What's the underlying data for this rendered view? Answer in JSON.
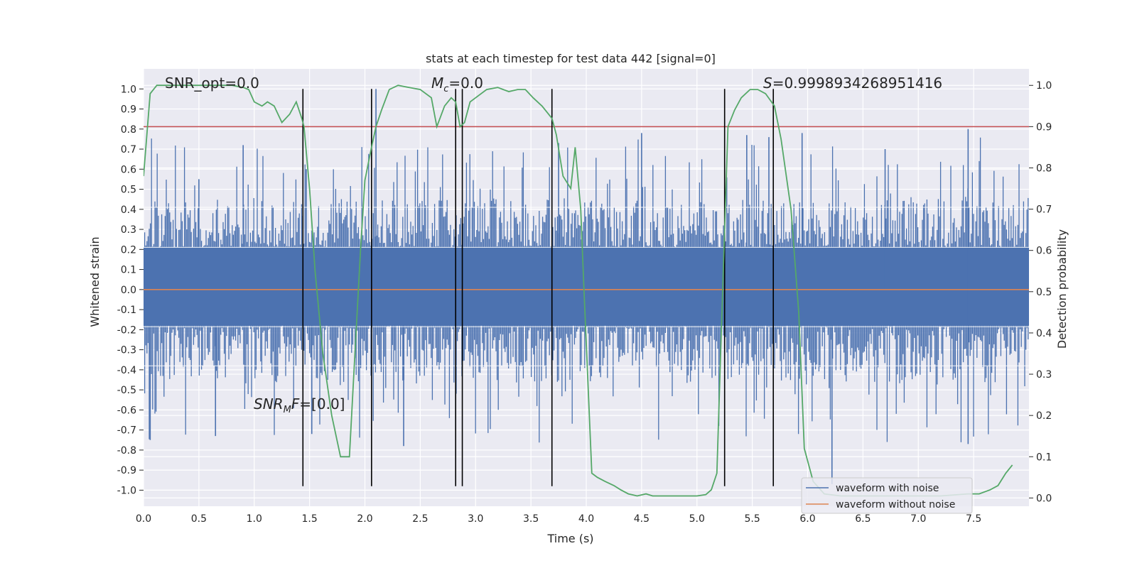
{
  "chart_data": {
    "type": "line",
    "title": "stats at each timestep for test data 442 [signal=0]",
    "xlabel": "Time (s)",
    "ylabel": "Whitened strain",
    "y2label": "Detection probability",
    "xlim": [
      0.0,
      8.0
    ],
    "ylim": [
      -1.08,
      1.1
    ],
    "y2lim": [
      -0.02,
      1.04
    ],
    "x_ticks": [
      0.0,
      0.5,
      1.0,
      1.5,
      2.0,
      2.5,
      3.0,
      3.5,
      4.0,
      4.5,
      5.0,
      5.5,
      6.0,
      6.5,
      7.0,
      7.5
    ],
    "x_tick_labels": [
      "0.0",
      "0.5",
      "1.0",
      "1.5",
      "2.0",
      "2.5",
      "3.0",
      "3.5",
      "4.0",
      "4.5",
      "5.0",
      "5.5",
      "6.0",
      "6.5",
      "7.0",
      "7.5"
    ],
    "y_ticks": [
      1.0,
      0.9,
      0.8,
      0.7,
      0.6,
      0.5,
      0.4,
      0.3,
      0.2,
      0.1,
      0.0,
      -0.1,
      -0.2,
      -0.3,
      -0.4,
      -0.5,
      -0.6,
      -0.7,
      -0.8,
      -0.9,
      -1.0
    ],
    "y_tick_labels": [
      "1.0",
      "0.9",
      "0.8",
      "0.7",
      "0.6",
      "0.5",
      "0.4",
      "0.3",
      "0.2",
      "0.1",
      "0.0",
      "-0.1",
      "-0.2",
      "-0.3",
      "-0.4",
      "-0.5",
      "-0.6",
      "-0.7",
      "-0.8",
      "-0.9",
      "-1.0"
    ],
    "y2_ticks": [
      1.0,
      0.9,
      0.8,
      0.7,
      0.6,
      0.5,
      0.4,
      0.3,
      0.2,
      0.1,
      0.0
    ],
    "y2_tick_labels": [
      "1.0",
      "0.9",
      "0.8",
      "0.7",
      "0.6",
      "0.5",
      "0.4",
      "0.3",
      "0.2",
      "0.1",
      "0.0"
    ],
    "grid": true,
    "legend": {
      "placement": "lower-right",
      "entries": [
        {
          "label": "waveform with noise",
          "color": "#4c72b0"
        },
        {
          "label": "waveform without noise",
          "color": "#dd8452"
        }
      ]
    },
    "annotations": {
      "snr_opt": "SNR_opt=0.0",
      "mc": "=0.0",
      "mc_symbol": "M",
      "mc_sub": "c",
      "s_value": "=0.9998934268951416",
      "s_symbol": "S",
      "snr_mf": "=[0.0]",
      "snr_mf_symbol": "SNR",
      "snr_mf_sub": "M",
      "snr_mf_tail": "F"
    },
    "series": [
      {
        "name": "waveform with noise",
        "color": "#4c72b0",
        "kind": "noise",
        "band_upper": 0.21,
        "band_lower": -0.18,
        "dense_upper": 0.4,
        "dense_lower": -0.42,
        "spikes": [
          {
            "x": 0.06,
            "y": -0.75
          },
          {
            "x": 0.5,
            "y": 0.55
          },
          {
            "x": 0.65,
            "y": -0.73
          },
          {
            "x": 0.9,
            "y": 0.72
          },
          {
            "x": 1.47,
            "y": 0.6
          },
          {
            "x": 1.52,
            "y": -0.72
          },
          {
            "x": 2.1,
            "y": 1.0
          },
          {
            "x": 2.35,
            "y": -0.78
          },
          {
            "x": 2.82,
            "y": -0.7
          },
          {
            "x": 3.75,
            "y": 0.73
          },
          {
            "x": 4.5,
            "y": 0.78
          },
          {
            "x": 5.45,
            "y": 0.77
          },
          {
            "x": 5.65,
            "y": 0.76
          },
          {
            "x": 5.95,
            "y": 0.78
          },
          {
            "x": 6.22,
            "y": -0.97
          },
          {
            "x": 7.45,
            "y": 0.8
          },
          {
            "x": 7.45,
            "y": -0.77
          },
          {
            "x": 6.7,
            "y": 0.7
          }
        ]
      },
      {
        "name": "waveform without noise",
        "color": "#dd8452",
        "x": [
          0.0,
          8.0
        ],
        "y": [
          0.0,
          0.0
        ]
      },
      {
        "name": "",
        "axis": "y2",
        "color": "#55a868",
        "x": [
          0.0,
          0.06,
          0.12,
          0.2,
          0.3,
          0.4,
          0.5,
          0.6,
          0.7,
          0.8,
          0.9,
          0.95,
          1.0,
          1.07,
          1.12,
          1.18,
          1.25,
          1.32,
          1.38,
          1.43,
          1.45,
          1.5,
          1.55,
          1.62,
          1.7,
          1.78,
          1.86,
          1.9,
          1.96,
          2.0,
          2.06,
          2.1,
          2.15,
          2.22,
          2.3,
          2.4,
          2.5,
          2.6,
          2.65,
          2.72,
          2.78,
          2.82,
          2.86,
          2.9,
          2.95,
          3.0,
          3.1,
          3.2,
          3.25,
          3.3,
          3.38,
          3.45,
          3.52,
          3.6,
          3.69,
          3.73,
          3.79,
          3.86,
          3.9,
          3.95,
          3.98,
          4.05,
          4.1,
          4.17,
          4.25,
          4.31,
          4.38,
          4.46,
          4.54,
          4.6,
          4.7,
          4.8,
          4.9,
          5.0,
          5.08,
          5.13,
          5.18,
          5.22,
          5.28,
          5.34,
          5.4,
          5.48,
          5.55,
          5.62,
          5.7,
          5.76,
          5.85,
          5.92,
          5.97,
          6.05,
          6.15,
          6.3,
          6.5,
          6.8,
          7.0,
          7.2,
          7.45,
          7.55,
          7.65,
          7.72,
          7.79,
          7.85
        ],
        "y": [
          0.78,
          0.98,
          1.0,
          1.0,
          1.0,
          1.0,
          1.0,
          1.0,
          1.0,
          1.0,
          0.995,
          0.99,
          0.96,
          0.95,
          0.96,
          0.95,
          0.91,
          0.93,
          0.96,
          0.92,
          0.9,
          0.75,
          0.55,
          0.35,
          0.2,
          0.1,
          0.1,
          0.3,
          0.6,
          0.77,
          0.85,
          0.9,
          0.94,
          0.99,
          1.0,
          0.995,
          0.99,
          0.97,
          0.9,
          0.95,
          0.97,
          0.96,
          0.9,
          0.91,
          0.96,
          0.97,
          0.99,
          0.995,
          0.99,
          0.985,
          0.99,
          0.99,
          0.97,
          0.95,
          0.92,
          0.88,
          0.78,
          0.75,
          0.85,
          0.7,
          0.5,
          0.06,
          0.05,
          0.04,
          0.03,
          0.02,
          0.01,
          0.005,
          0.01,
          0.005,
          0.005,
          0.005,
          0.005,
          0.005,
          0.008,
          0.02,
          0.06,
          0.4,
          0.9,
          0.94,
          0.97,
          0.99,
          0.99,
          0.98,
          0.95,
          0.87,
          0.7,
          0.45,
          0.12,
          0.04,
          0.01,
          0.005,
          0.005,
          0.005,
          0.005,
          0.005,
          0.01,
          0.01,
          0.02,
          0.03,
          0.06,
          0.08
        ]
      }
    ],
    "threshold_line": {
      "axis": "y2",
      "value": 0.9,
      "color": "#c44e52"
    },
    "vertical_lines": [
      1.44,
      2.06,
      2.82,
      2.88,
      3.69,
      5.25,
      5.69
    ],
    "vline_ymin": -0.98,
    "vline_ymax": 1.0
  }
}
